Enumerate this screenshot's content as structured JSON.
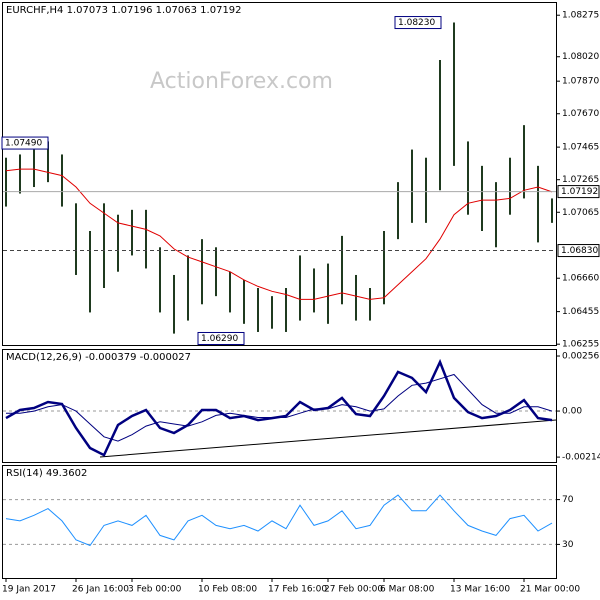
{
  "chart_data": [
    {
      "type": "hilo",
      "title": "EURCHF,H4 1.07073 1.07196 1.07063 1.07192",
      "watermark": "ActionForex.com",
      "color": "#1f3a1f",
      "high": [
        1.074,
        1.0742,
        1.0745,
        1.075,
        1.0742,
        1.0712,
        1.0695,
        1.0712,
        1.0705,
        1.0708,
        1.0708,
        1.0685,
        1.0668,
        1.068,
        1.069,
        1.0685,
        1.067,
        1.0665,
        1.066,
        1.0655,
        1.066,
        1.068,
        1.0672,
        1.0675,
        1.0692,
        1.0668,
        1.066,
        1.0695,
        1.0725,
        1.0745,
        1.074,
        1.08,
        1.0823,
        1.075,
        1.0735,
        1.0725,
        1.074,
        1.076,
        1.0735,
        1.0715
      ],
      "low": [
        1.071,
        1.0718,
        1.0722,
        1.0725,
        1.071,
        1.0668,
        1.0645,
        1.066,
        1.067,
        1.068,
        1.0672,
        1.0645,
        1.0632,
        1.064,
        1.065,
        1.0655,
        1.0645,
        1.0638,
        1.0633,
        1.0635,
        1.0633,
        1.064,
        1.0645,
        1.0638,
        1.065,
        1.064,
        1.064,
        1.065,
        1.069,
        1.07,
        1.07,
        1.072,
        1.0735,
        1.0705,
        1.0695,
        1.0685,
        1.0705,
        1.0715,
        1.0688,
        1.07
      ],
      "ma": {
        "color": "#e00000",
        "values": [
          1.0732,
          1.0733,
          1.0733,
          1.0731,
          1.0729,
          1.0722,
          1.0712,
          1.0706,
          1.07,
          1.0698,
          1.0696,
          1.0692,
          1.0684,
          1.0679,
          1.0676,
          1.0673,
          1.067,
          1.0665,
          1.0661,
          1.0658,
          1.0656,
          1.0653,
          1.0653,
          1.0655,
          1.0657,
          1.0655,
          1.0653,
          1.0654,
          1.0662,
          1.067,
          1.0678,
          1.069,
          1.0705,
          1.0712,
          1.0714,
          1.0714,
          1.0715,
          1.072,
          1.0722,
          1.0719
        ]
      },
      "ylim": [
        1.0625,
        1.0835
      ],
      "yticks": [
        1.08275,
        {
          "value": 1.0802,
          "label": "1.08020"
        },
        {
          "value": 1.0787,
          "label": "1.07870"
        },
        {
          "value": 1.0767,
          "label": "1.07670"
        },
        1.07465,
        1.07265,
        1.07065,
        {
          "value": 1.0666,
          "label": "1.06660"
        },
        1.06455,
        1.06255
      ],
      "annotations": [
        {
          "value": 1.0823,
          "label": "1.08230"
        },
        {
          "value": 1.0629,
          "label": "1.06290"
        },
        {
          "value": 1.0749,
          "label": "1.07490"
        },
        {
          "value": 1.07192,
          "label": "1.07192"
        },
        {
          "value": 1.0683,
          "label": "1.06830"
        }
      ]
    },
    {
      "type": "line",
      "title": "MACD(12,26,9) -0.000379 -0.000027",
      "series": [
        {
          "color": "#000080",
          "values": [
            -0.00033,
            5e-05,
            0.00014,
            0.00042,
            0.00033,
            -0.00079,
            -0.00172,
            -0.00205,
            -0.00065,
            -0.00023,
            5e-05,
            -0.00079,
            -0.00102,
            -0.00065,
            5e-05,
            5e-05,
            -0.00033,
            -0.00023,
            -0.00042,
            -0.00033,
            -0.00023,
            0.00042,
            5e-05,
            0.00014,
            0.00061,
            -0.00014,
            -0.00023,
            0.0007,
            0.00182,
            0.00154,
            0.00088,
            0.00228,
            0.00061,
            -5e-05,
            -0.00033,
            -0.00023,
            5e-05,
            0.00051,
            -0.00033,
            -0.00042
          ]
        },
        {
          "color": "#000080",
          "values": [
            -0.0001,
            -0.0001,
            0.0,
            0.0002,
            0.0003,
            0.0,
            -0.0006,
            -0.0012,
            -0.0014,
            -0.0011,
            -0.0007,
            -0.0005,
            -0.0006,
            -0.0007,
            -0.0005,
            -0.0002,
            -0.0001,
            -0.0002,
            -0.0003,
            -0.0003,
            -0.0003,
            -0.0001,
            0.0001,
            0.0001,
            0.0003,
            0.0002,
            0.0,
            0.0001,
            0.0007,
            0.0012,
            0.0013,
            0.0015,
            0.0017,
            0.001,
            0.0003,
            -0.0001,
            -0.0001,
            0.0002,
            0.0002,
            0.0
          ]
        }
      ],
      "ylim": [
        -0.00237,
        0.00284
      ],
      "yticks": [
        0.00256,
        {
          "value": 0,
          "label": "0.00"
        },
        -0.002142
      ]
    },
    {
      "type": "line",
      "title": "RSI(14) 49.3602",
      "series": [
        {
          "color": "#1e90ff",
          "values": [
            53,
            51,
            56,
            62,
            51,
            34,
            29,
            47,
            51,
            47,
            56,
            38,
            34,
            51,
            56,
            47,
            44,
            47,
            42,
            51,
            44,
            65,
            47,
            51,
            60,
            44,
            47,
            65,
            74,
            60,
            60,
            74,
            60,
            47,
            42,
            38,
            53,
            56,
            42,
            49
          ]
        }
      ],
      "ylim": [
        0,
        100
      ],
      "yticks": [
        70,
        30
      ],
      "categories": [
        "19 Jan 2017",
        null,
        null,
        null,
        null,
        "26 Jan 16:00",
        null,
        null,
        null,
        "3 Feb 00:00",
        null,
        null,
        null,
        null,
        "10 Feb 08:00",
        null,
        null,
        null,
        null,
        "17 Feb 16:00",
        null,
        null,
        null,
        "27 Feb 00:00",
        null,
        null,
        null,
        "6 Mar 08:00",
        null,
        null,
        null,
        null,
        "13 Mar 16:00",
        null,
        null,
        null,
        null,
        "21 Mar 00:00",
        null,
        null
      ]
    }
  ]
}
